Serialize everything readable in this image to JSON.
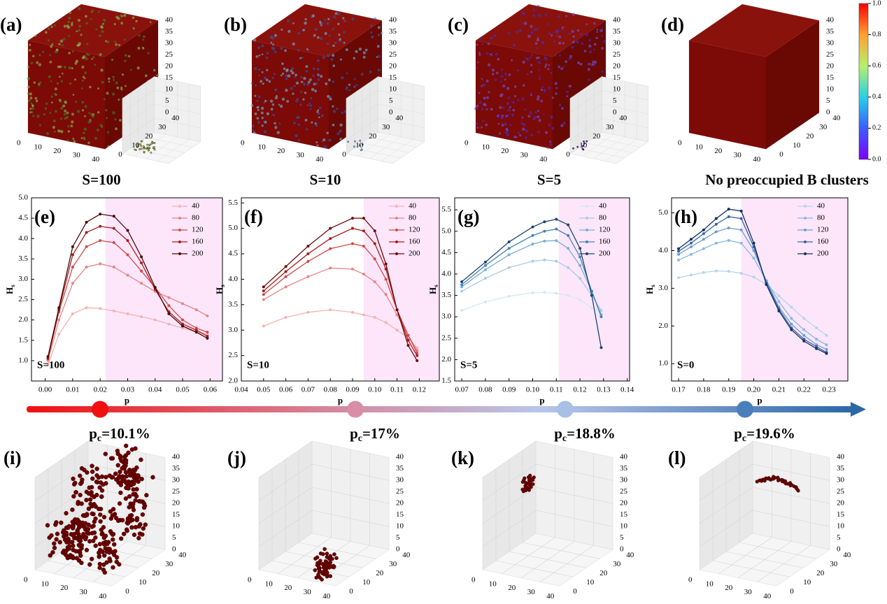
{
  "panels_top": [
    {
      "label": "(a)",
      "caption": "S=100"
    },
    {
      "label": "(b)",
      "caption": "S=10"
    },
    {
      "label": "(c)",
      "caption": "S=5"
    },
    {
      "label": "(d)",
      "caption": "No preoccupied B clusters"
    }
  ],
  "cube_axes": {
    "x_ticks": [
      "0",
      "10",
      "20",
      "30",
      "40"
    ],
    "y_ticks": [
      "0",
      "10",
      "20",
      "30",
      "40"
    ],
    "z_ticks": [
      "0",
      "5",
      "10",
      "15",
      "20",
      "25",
      "30",
      "35",
      "40"
    ]
  },
  "colorbar": {
    "ticks": [
      {
        "value": 0,
        "label": "0.0"
      },
      {
        "value": 0.2,
        "label": "0.2"
      },
      {
        "value": 0.4,
        "label": "0.4"
      },
      {
        "value": 0.6,
        "label": "0.6"
      },
      {
        "value": 0.8,
        "label": "0.8"
      },
      {
        "value": 1,
        "label": "1.0"
      }
    ]
  },
  "chart_data": [
    {
      "type": "line",
      "panel_label": "(e)",
      "annotation": "S=100",
      "x_label": "p",
      "y_label": [
        "H",
        "s"
      ],
      "shade_from": 0.022,
      "shade_color": "#fde6fa",
      "xlim": [
        -0.005,
        0.0645
      ],
      "ylim": [
        0.5,
        5.0
      ],
      "xticks": [
        {
          "value": 0,
          "label": "0.00"
        },
        {
          "value": 0.01,
          "label": "0.01"
        },
        {
          "value": 0.02,
          "label": "0.02"
        },
        {
          "value": 0.03,
          "label": "0.03"
        },
        {
          "value": 0.04,
          "label": "0.04"
        },
        {
          "value": 0.05,
          "label": "0.05"
        },
        {
          "value": 0.06,
          "label": "0.06"
        }
      ],
      "yticks": [
        {
          "value": 1,
          "label": "1.0"
        },
        {
          "value": 1.5,
          "label": "1.5"
        },
        {
          "value": 2,
          "label": "2.0"
        },
        {
          "value": 2.5,
          "label": "2.5"
        },
        {
          "value": 3,
          "label": "3.0"
        },
        {
          "value": 3.5,
          "label": "3.5"
        },
        {
          "value": 4,
          "label": "4.0"
        },
        {
          "value": 4.5,
          "label": "4.5"
        },
        {
          "value": 5,
          "label": "5.0"
        }
      ],
      "x": [
        0.001,
        0.005,
        0.01,
        0.015,
        0.02,
        0.025,
        0.03,
        0.035,
        0.04,
        0.045,
        0.05,
        0.055,
        0.059
      ],
      "series": [
        {
          "name": "40",
          "color": "#f2b3b3",
          "values": [
            0.9,
            1.65,
            2.15,
            2.3,
            2.28,
            2.22,
            2.15,
            2.08,
            2.0,
            1.9,
            1.8,
            1.7,
            1.65
          ]
        },
        {
          "name": "80",
          "color": "#e58585",
          "values": [
            1.0,
            2.0,
            2.9,
            3.3,
            3.38,
            3.3,
            3.1,
            2.9,
            2.7,
            2.55,
            2.4,
            2.25,
            2.1
          ]
        },
        {
          "name": "120",
          "color": "#cf4a4a",
          "values": [
            1.05,
            2.2,
            3.3,
            3.8,
            3.95,
            3.9,
            3.6,
            3.2,
            2.8,
            2.35,
            2.0,
            1.8,
            1.7
          ]
        },
        {
          "name": "160",
          "color": "#a81c1c",
          "values": [
            1.05,
            2.25,
            3.6,
            4.15,
            4.3,
            4.25,
            3.95,
            3.4,
            2.75,
            2.2,
            1.9,
            1.75,
            1.6
          ]
        },
        {
          "name": "200",
          "color": "#4e0808",
          "values": [
            1.1,
            2.3,
            3.8,
            4.4,
            4.6,
            4.55,
            4.2,
            3.55,
            2.8,
            2.15,
            1.85,
            1.7,
            1.55
          ]
        }
      ]
    },
    {
      "type": "line",
      "panel_label": "(f)",
      "annotation": "S=10",
      "x_label": "p",
      "y_label": [
        "H",
        "s"
      ],
      "shade_from": 0.095,
      "shade_color": "#fde6fa",
      "xlim": [
        0.04,
        0.129
      ],
      "ylim": [
        2.0,
        5.6
      ],
      "xticks": [
        {
          "value": 0.04,
          "label": "0.04"
        },
        {
          "value": 0.05,
          "label": "0.05"
        },
        {
          "value": 0.06,
          "label": "0.06"
        },
        {
          "value": 0.07,
          "label": "0.07"
        },
        {
          "value": 0.08,
          "label": "0.08"
        },
        {
          "value": 0.09,
          "label": "0.09"
        },
        {
          "value": 0.1,
          "label": "0.10"
        },
        {
          "value": 0.11,
          "label": "0.11"
        },
        {
          "value": 0.12,
          "label": "0.12"
        }
      ],
      "yticks": [
        {
          "value": 2,
          "label": "2.0"
        },
        {
          "value": 2.5,
          "label": "2.5"
        },
        {
          "value": 3,
          "label": "3.0"
        },
        {
          "value": 3.5,
          "label": "3.5"
        },
        {
          "value": 4,
          "label": "4.0"
        },
        {
          "value": 4.5,
          "label": "4.5"
        },
        {
          "value": 5,
          "label": "5.0"
        },
        {
          "value": 5.5,
          "label": "5.5"
        }
      ],
      "x": [
        0.05,
        0.06,
        0.07,
        0.08,
        0.09,
        0.095,
        0.1,
        0.105,
        0.11,
        0.115,
        0.119
      ],
      "series": [
        {
          "name": "40",
          "color": "#f2b3b3",
          "values": [
            3.08,
            3.25,
            3.35,
            3.4,
            3.35,
            3.3,
            3.25,
            3.15,
            3.0,
            2.85,
            2.65
          ]
        },
        {
          "name": "80",
          "color": "#e58585",
          "values": [
            3.6,
            3.85,
            4.05,
            4.22,
            4.2,
            4.1,
            3.95,
            3.7,
            3.3,
            2.9,
            2.6
          ]
        },
        {
          "name": "120",
          "color": "#cf4a4a",
          "values": [
            3.7,
            4.05,
            4.35,
            4.6,
            4.7,
            4.65,
            4.4,
            4.0,
            3.4,
            2.9,
            2.55
          ]
        },
        {
          "name": "160",
          "color": "#a81c1c",
          "values": [
            3.77,
            4.15,
            4.5,
            4.8,
            5.0,
            4.95,
            4.7,
            4.2,
            3.4,
            2.8,
            2.5
          ]
        },
        {
          "name": "200",
          "color": "#6e0a0a",
          "values": [
            3.85,
            4.25,
            4.65,
            5.0,
            5.2,
            5.2,
            4.95,
            4.3,
            3.4,
            2.7,
            2.4
          ]
        }
      ]
    },
    {
      "type": "line",
      "panel_label": "(g)",
      "annotation": "S=5",
      "x_label": "p",
      "y_label": [
        "H",
        "s"
      ],
      "shade_from": 0.111,
      "shade_color": "#fde6fa",
      "xlim": [
        0.067,
        0.141
      ],
      "ylim": [
        1.5,
        5.78
      ],
      "xticks": [
        {
          "value": 0.07,
          "label": "0.07"
        },
        {
          "value": 0.08,
          "label": "0.08"
        },
        {
          "value": 0.09,
          "label": "0.09"
        },
        {
          "value": 0.1,
          "label": "0.10"
        },
        {
          "value": 0.11,
          "label": "0.11"
        },
        {
          "value": 0.12,
          "label": "0.12"
        },
        {
          "value": 0.13,
          "label": "0.13"
        },
        {
          "value": 0.14,
          "label": "0.14"
        }
      ],
      "yticks": [
        {
          "value": 1.5,
          "label": "1.5"
        },
        {
          "value": 2,
          "label": "2.0"
        },
        {
          "value": 2.5,
          "label": "2.5"
        },
        {
          "value": 3,
          "label": "3.0"
        },
        {
          "value": 3.5,
          "label": "3.5"
        },
        {
          "value": 4,
          "label": "4.0"
        },
        {
          "value": 4.5,
          "label": "4.5"
        },
        {
          "value": 5,
          "label": "5.0"
        },
        {
          "value": 5.5,
          "label": "5.5"
        }
      ],
      "x": [
        0.07,
        0.08,
        0.09,
        0.1,
        0.105,
        0.11,
        0.115,
        0.12,
        0.125,
        0.129
      ],
      "series": [
        {
          "name": "40",
          "color": "#d6e7f4",
          "values": [
            3.15,
            3.35,
            3.48,
            3.56,
            3.57,
            3.55,
            3.5,
            3.4,
            3.2,
            3.1
          ]
        },
        {
          "name": "80",
          "color": "#a9cbe6",
          "values": [
            3.6,
            3.9,
            4.15,
            4.3,
            4.33,
            4.3,
            4.15,
            3.9,
            3.5,
            3.15
          ]
        },
        {
          "name": "120",
          "color": "#7aaed6",
          "values": [
            3.7,
            4.1,
            4.45,
            4.7,
            4.77,
            4.78,
            4.6,
            4.2,
            3.6,
            3.05
          ]
        },
        {
          "name": "160",
          "color": "#4683b6",
          "values": [
            3.75,
            4.2,
            4.6,
            4.9,
            5.0,
            5.05,
            4.9,
            4.4,
            3.6,
            3.0
          ]
        },
        {
          "name": "200",
          "color": "#1d4572",
          "values": [
            3.82,
            4.28,
            4.75,
            5.1,
            5.22,
            5.28,
            5.15,
            4.6,
            3.5,
            2.28
          ]
        }
      ]
    },
    {
      "type": "line",
      "panel_label": "(h)",
      "annotation": "S=0",
      "x_label": "p",
      "y_label": [
        "H",
        "s"
      ],
      "shade_from": 0.195,
      "shade_color": "#fde6fa",
      "xlim": [
        0.1672,
        0.2375
      ],
      "ylim": [
        0.54,
        5.4
      ],
      "xticks": [
        {
          "value": 0.17,
          "label": "0.17"
        },
        {
          "value": 0.18,
          "label": "0.18"
        },
        {
          "value": 0.19,
          "label": "0.19"
        },
        {
          "value": 0.2,
          "label": "0.20"
        },
        {
          "value": 0.21,
          "label": "0.21"
        },
        {
          "value": 0.22,
          "label": "0.22"
        },
        {
          "value": 0.23,
          "label": "0.23"
        }
      ],
      "yticks": [
        {
          "value": 1,
          "label": "1.0"
        },
        {
          "value": 2,
          "label": "2.0"
        },
        {
          "value": 3,
          "label": "3.0"
        },
        {
          "value": 4,
          "label": "4.0"
        },
        {
          "value": 5,
          "label": "5.0"
        }
      ],
      "x": [
        0.17,
        0.175,
        0.18,
        0.185,
        0.19,
        0.195,
        0.2,
        0.205,
        0.21,
        0.215,
        0.22,
        0.225,
        0.229
      ],
      "series": [
        {
          "name": "40",
          "color": "#b6d4ee",
          "values": [
            3.28,
            3.35,
            3.42,
            3.46,
            3.45,
            3.4,
            3.3,
            3.1,
            2.8,
            2.5,
            2.2,
            1.95,
            1.75
          ]
        },
        {
          "name": "80",
          "color": "#8ab8e2",
          "values": [
            3.75,
            3.9,
            4.05,
            4.2,
            4.27,
            4.2,
            3.8,
            3.2,
            2.65,
            2.2,
            1.9,
            1.65,
            1.5
          ]
        },
        {
          "name": "120",
          "color": "#6a9fd0",
          "values": [
            3.9,
            4.1,
            4.3,
            4.5,
            4.6,
            4.55,
            4.0,
            3.2,
            2.5,
            2.05,
            1.75,
            1.5,
            1.38
          ]
        },
        {
          "name": "160",
          "color": "#3366a8",
          "values": [
            3.98,
            4.2,
            4.45,
            4.7,
            4.9,
            4.85,
            4.1,
            3.15,
            2.45,
            1.95,
            1.65,
            1.45,
            1.3
          ]
        },
        {
          "name": "200",
          "color": "#14305e",
          "values": [
            4.05,
            4.3,
            4.55,
            4.85,
            5.1,
            5.05,
            4.2,
            3.1,
            2.4,
            1.9,
            1.6,
            1.4,
            1.27
          ]
        }
      ]
    }
  ],
  "thresholds": [
    {
      "symbol": "p",
      "sub": "c",
      "text": "=10.1%"
    },
    {
      "symbol": "p",
      "sub": "c",
      "text": "=17%"
    },
    {
      "symbol": "p",
      "sub": "c",
      "text": "=18.8%"
    },
    {
      "symbol": "p",
      "sub": "c",
      "text": "=19.6%"
    }
  ],
  "panels_bottom": [
    {
      "label": "(i)"
    },
    {
      "label": "(j)"
    },
    {
      "label": "(k)"
    },
    {
      "label": "(l)"
    }
  ]
}
